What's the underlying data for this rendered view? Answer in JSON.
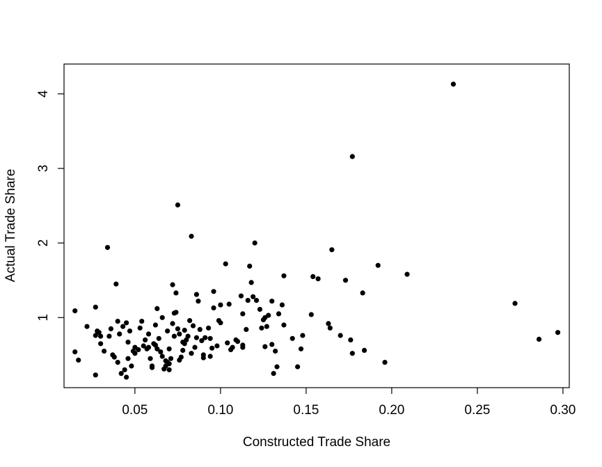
{
  "chart_data": {
    "type": "scatter",
    "title": "",
    "xlabel": "Constructed Trade Share",
    "ylabel": "Actual Trade Share",
    "xlim": [
      0.0086,
      0.3037
    ],
    "ylim": [
      0.06,
      4.4
    ],
    "xticks": [
      0.05,
      0.1,
      0.15,
      0.2,
      0.25,
      0.3
    ],
    "xtick_labels": [
      "0.05",
      "0.10",
      "0.15",
      "0.20",
      "0.25",
      "0.30"
    ],
    "yticks": [
      1,
      2,
      3,
      4
    ],
    "ytick_labels": [
      "1",
      "2",
      "3",
      "4"
    ],
    "grid": false,
    "legend": "none",
    "marker_color": "#000000",
    "points": [
      [
        0.015,
        1.09
      ],
      [
        0.015,
        0.54
      ],
      [
        0.017,
        0.43
      ],
      [
        0.022,
        0.88
      ],
      [
        0.027,
        1.14
      ],
      [
        0.027,
        0.76
      ],
      [
        0.028,
        0.82
      ],
      [
        0.029,
        0.8
      ],
      [
        0.03,
        0.65
      ],
      [
        0.03,
        0.75
      ],
      [
        0.027,
        0.23
      ],
      [
        0.032,
        0.55
      ],
      [
        0.034,
        1.94
      ],
      [
        0.035,
        0.75
      ],
      [
        0.036,
        0.85
      ],
      [
        0.037,
        0.5
      ],
      [
        0.038,
        0.47
      ],
      [
        0.039,
        1.45
      ],
      [
        0.04,
        0.95
      ],
      [
        0.04,
        0.4
      ],
      [
        0.041,
        0.78
      ],
      [
        0.042,
        0.25
      ],
      [
        0.043,
        0.88
      ],
      [
        0.044,
        0.3
      ],
      [
        0.045,
        0.2
      ],
      [
        0.045,
        0.93
      ],
      [
        0.046,
        0.45
      ],
      [
        0.046,
        0.67
      ],
      [
        0.047,
        0.82
      ],
      [
        0.048,
        0.35
      ],
      [
        0.049,
        0.55
      ],
      [
        0.05,
        0.52
      ],
      [
        0.05,
        0.6
      ],
      [
        0.052,
        0.57
      ],
      [
        0.053,
        0.86
      ],
      [
        0.054,
        0.95
      ],
      [
        0.055,
        0.62
      ],
      [
        0.056,
        0.7
      ],
      [
        0.057,
        0.58
      ],
      [
        0.058,
        0.6
      ],
      [
        0.058,
        0.78
      ],
      [
        0.059,
        0.45
      ],
      [
        0.06,
        0.35
      ],
      [
        0.06,
        0.33
      ],
      [
        0.061,
        0.65
      ],
      [
        0.062,
        0.9
      ],
      [
        0.062,
        0.63
      ],
      [
        0.063,
        1.12
      ],
      [
        0.063,
        0.58
      ],
      [
        0.064,
        0.72
      ],
      [
        0.065,
        0.54
      ],
      [
        0.066,
        0.48
      ],
      [
        0.066,
        1.0
      ],
      [
        0.067,
        0.31
      ],
      [
        0.068,
        0.35
      ],
      [
        0.068,
        0.42
      ],
      [
        0.069,
        0.82
      ],
      [
        0.069,
        0.4
      ],
      [
        0.07,
        0.38
      ],
      [
        0.07,
        0.3
      ],
      [
        0.07,
        0.58
      ],
      [
        0.071,
        0.45
      ],
      [
        0.072,
        1.44
      ],
      [
        0.072,
        0.92
      ],
      [
        0.073,
        0.75
      ],
      [
        0.073,
        1.06
      ],
      [
        0.074,
        1.33
      ],
      [
        0.074,
        1.07
      ],
      [
        0.075,
        2.51
      ],
      [
        0.075,
        0.85
      ],
      [
        0.076,
        0.78
      ],
      [
        0.076,
        0.43
      ],
      [
        0.077,
        0.47
      ],
      [
        0.078,
        0.56
      ],
      [
        0.078,
        0.67
      ],
      [
        0.079,
        0.83
      ],
      [
        0.079,
        0.65
      ],
      [
        0.08,
        0.7
      ],
      [
        0.081,
        0.75
      ],
      [
        0.082,
        0.96
      ],
      [
        0.083,
        0.52
      ],
      [
        0.083,
        2.09
      ],
      [
        0.084,
        0.89
      ],
      [
        0.085,
        0.6
      ],
      [
        0.086,
        0.73
      ],
      [
        0.086,
        1.31
      ],
      [
        0.087,
        1.22
      ],
      [
        0.088,
        0.84
      ],
      [
        0.089,
        0.69
      ],
      [
        0.09,
        0.5
      ],
      [
        0.09,
        0.46
      ],
      [
        0.091,
        0.73
      ],
      [
        0.093,
        0.86
      ],
      [
        0.094,
        0.48
      ],
      [
        0.094,
        0.72
      ],
      [
        0.095,
        0.59
      ],
      [
        0.096,
        1.13
      ],
      [
        0.096,
        1.35
      ],
      [
        0.098,
        0.62
      ],
      [
        0.099,
        0.96
      ],
      [
        0.1,
        1.17
      ],
      [
        0.1,
        0.93
      ],
      [
        0.103,
        1.72
      ],
      [
        0.104,
        0.66
      ],
      [
        0.105,
        1.18
      ],
      [
        0.106,
        0.57
      ],
      [
        0.107,
        0.6
      ],
      [
        0.109,
        0.7
      ],
      [
        0.11,
        0.68
      ],
      [
        0.112,
        1.29
      ],
      [
        0.113,
        0.6
      ],
      [
        0.113,
        0.63
      ],
      [
        0.113,
        1.05
      ],
      [
        0.115,
        0.84
      ],
      [
        0.116,
        1.23
      ],
      [
        0.117,
        1.69
      ],
      [
        0.118,
        1.47
      ],
      [
        0.119,
        1.28
      ],
      [
        0.12,
        2.0
      ],
      [
        0.121,
        1.23
      ],
      [
        0.123,
        1.11
      ],
      [
        0.124,
        0.86
      ],
      [
        0.125,
        0.97
      ],
      [
        0.126,
        1.0
      ],
      [
        0.126,
        0.61
      ],
      [
        0.127,
        0.88
      ],
      [
        0.128,
        1.03
      ],
      [
        0.13,
        1.22
      ],
      [
        0.13,
        0.64
      ],
      [
        0.131,
        0.25
      ],
      [
        0.132,
        0.55
      ],
      [
        0.133,
        0.34
      ],
      [
        0.134,
        1.05
      ],
      [
        0.136,
        1.17
      ],
      [
        0.137,
        0.9
      ],
      [
        0.137,
        1.56
      ],
      [
        0.142,
        0.72
      ],
      [
        0.145,
        0.34
      ],
      [
        0.147,
        0.58
      ],
      [
        0.148,
        0.76
      ],
      [
        0.153,
        1.04
      ],
      [
        0.154,
        1.55
      ],
      [
        0.157,
        1.52
      ],
      [
        0.163,
        0.92
      ],
      [
        0.164,
        0.86
      ],
      [
        0.165,
        1.91
      ],
      [
        0.17,
        0.76
      ],
      [
        0.173,
        1.5
      ],
      [
        0.176,
        0.7
      ],
      [
        0.177,
        0.52
      ],
      [
        0.177,
        3.16
      ],
      [
        0.183,
        1.33
      ],
      [
        0.184,
        0.56
      ],
      [
        0.192,
        1.7
      ],
      [
        0.196,
        0.4
      ],
      [
        0.209,
        1.58
      ],
      [
        0.236,
        4.13
      ],
      [
        0.272,
        1.19
      ],
      [
        0.286,
        0.71
      ],
      [
        0.297,
        0.8
      ]
    ]
  }
}
